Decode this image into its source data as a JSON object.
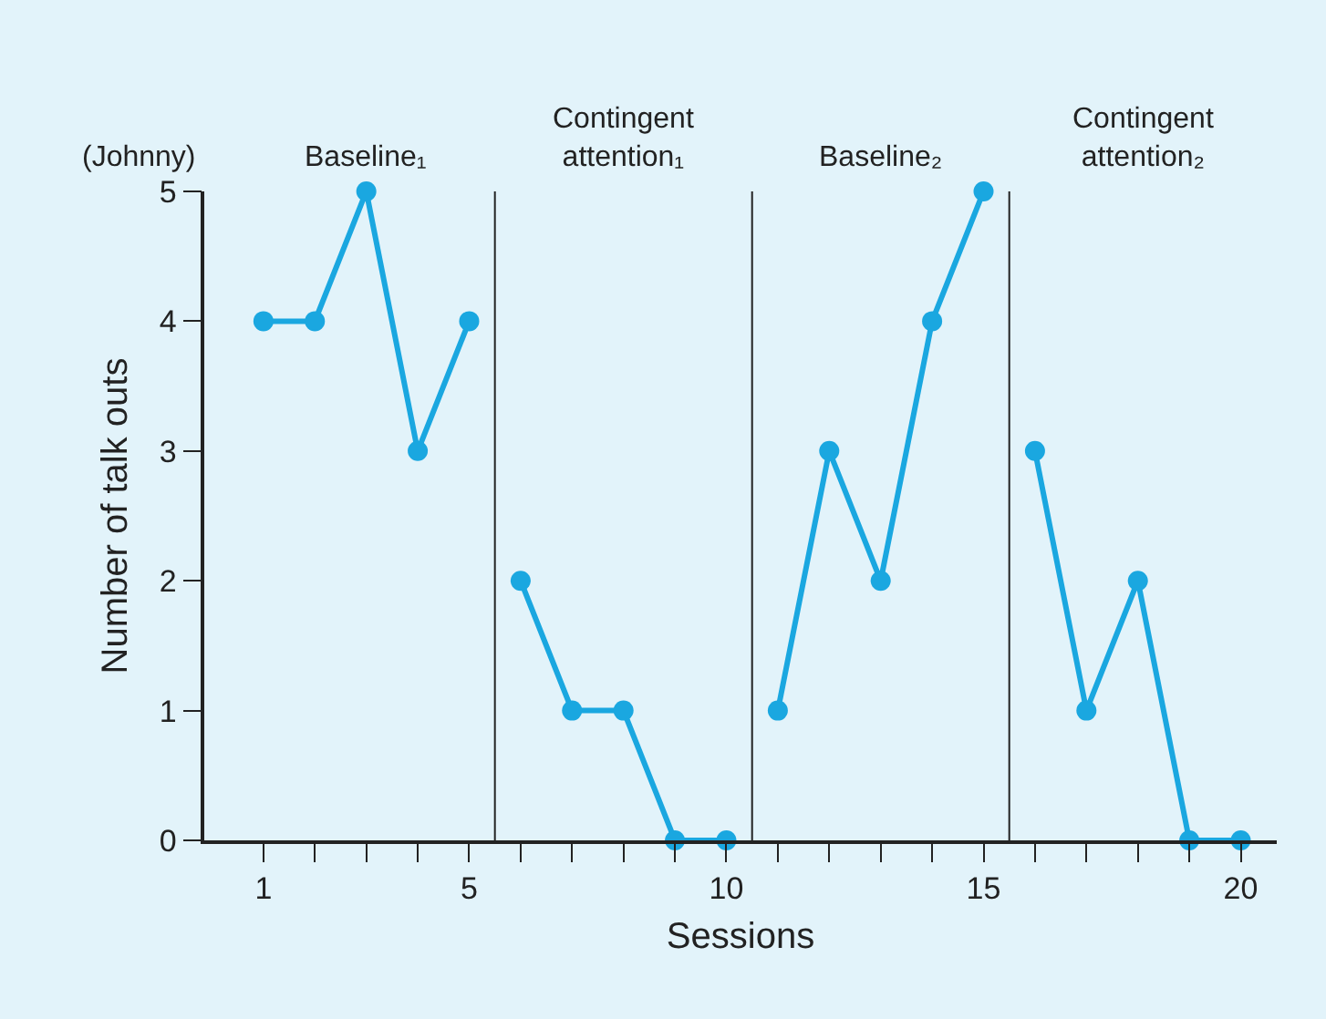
{
  "chart_data": {
    "type": "line",
    "xlabel": "Sessions",
    "ylabel": "Number of talk outs",
    "annotations": [
      "(Johnny)",
      "Baseline₁",
      "Contingent\nattention₁",
      "Baseline₂",
      "Contingent\nattention₂"
    ],
    "series": [
      {
        "color": "#1aa7e0",
        "x": [
          1,
          2,
          3,
          4,
          5
        ],
        "values": [
          4,
          4,
          5,
          3,
          4
        ]
      },
      {
        "color": "#1aa7e0",
        "x": [
          6,
          7,
          8,
          9,
          10
        ],
        "values": [
          2,
          1,
          1,
          0,
          0
        ]
      },
      {
        "color": "#1aa7e0",
        "x": [
          11,
          12,
          13,
          14,
          15
        ],
        "values": [
          1,
          3,
          2,
          4,
          5
        ]
      },
      {
        "color": "#1aa7e0",
        "x": [
          16,
          17,
          18,
          19,
          20
        ],
        "values": [
          3,
          1,
          2,
          0,
          0
        ]
      }
    ],
    "ref_lines": [
      {
        "axis": "x",
        "value": 5.5,
        "color": "#222222"
      },
      {
        "axis": "x",
        "value": 10.5,
        "color": "#222222"
      },
      {
        "axis": "x",
        "value": 15.5,
        "color": "#222222"
      }
    ],
    "xlim": [
      -0.15,
      20.7
    ],
    "ylim": [
      0,
      5
    ],
    "xticks": [
      1,
      {
        "value": 2,
        "label": null
      },
      {
        "value": 3,
        "label": null
      },
      {
        "value": 4,
        "label": null
      },
      5,
      {
        "value": 6,
        "label": null
      },
      {
        "value": 7,
        "label": null
      },
      {
        "value": 8,
        "label": null
      },
      {
        "value": 9,
        "label": null
      },
      10,
      {
        "value": 11,
        "label": null
      },
      {
        "value": 12,
        "label": null
      },
      {
        "value": 13,
        "label": null
      },
      {
        "value": 14,
        "label": null
      },
      15,
      {
        "value": 16,
        "label": null
      },
      {
        "value": 17,
        "label": null
      },
      {
        "value": 18,
        "label": null
      },
      {
        "value": 19,
        "label": null
      },
      20
    ],
    "yticks": [
      0,
      1,
      2,
      3,
      4,
      5
    ],
    "grid": false,
    "marker": "circle",
    "line_style": "solid"
  }
}
